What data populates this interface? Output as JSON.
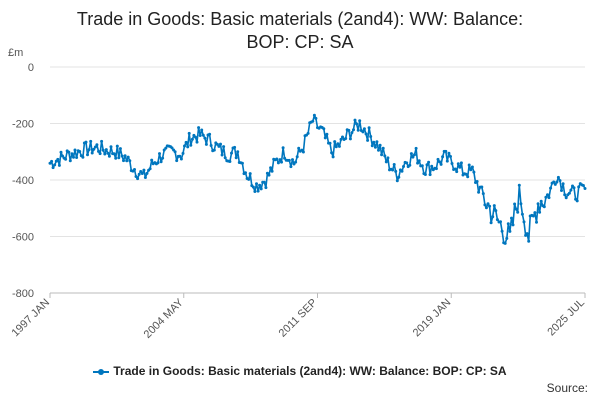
{
  "chart_data": {
    "type": "line",
    "title": "Trade in Goods: Basic materials (2and4): WW: Balance: BOP: CP: SA",
    "title_lines": [
      "Trade in Goods: Basic materials (2and4): WW: Balance:",
      "BOP: CP: SA"
    ],
    "ylabel": "£m",
    "xlabel": "",
    "ylim": [
      -800,
      0
    ],
    "y_ticks": [
      0,
      -200,
      -400,
      -600,
      -800
    ],
    "x_tick_labels": [
      "1997 JAN",
      "2004 MAY",
      "2011 SEP",
      "2019 JAN",
      "2025 JUL"
    ],
    "x_range": [
      "1997 JAN",
      "2025 JUL"
    ],
    "grid": true,
    "legend_position": "bottom",
    "series": [
      {
        "name": "Trade in Goods: Basic materials (2and4): WW: Balance: BOP: CP: SA",
        "color": "#0076be",
        "x": [
          "1997",
          "1997.5",
          "1998",
          "1998.5",
          "1999",
          "1999.5",
          "2000",
          "2000.5",
          "2001",
          "2001.5",
          "2002",
          "2002.5",
          "2003",
          "2003.5",
          "2004",
          "2004.5",
          "2005",
          "2005.5",
          "2006",
          "2006.5",
          "2007",
          "2007.5",
          "2008",
          "2008.5",
          "2009",
          "2009.5",
          "2010",
          "2010.5",
          "2011",
          "2011.5",
          "2012",
          "2012.5",
          "2013",
          "2013.5",
          "2014",
          "2014.5",
          "2015",
          "2015.5",
          "2016",
          "2016.5",
          "2017",
          "2017.5",
          "2018",
          "2018.5",
          "2019",
          "2019.5",
          "2020",
          "2020.5",
          "2021",
          "2021.5",
          "2022",
          "2022.5",
          "2023",
          "2023.5",
          "2024",
          "2024.5",
          "2025",
          "2025.5"
        ],
        "values": [
          -340,
          -325,
          -310,
          -300,
          -290,
          -285,
          -295,
          -300,
          -320,
          -360,
          -390,
          -340,
          -310,
          -300,
          -310,
          -250,
          -240,
          -260,
          -290,
          -310,
          -300,
          -380,
          -420,
          -400,
          -340,
          -300,
          -340,
          -280,
          -190,
          -230,
          -300,
          -270,
          -230,
          -200,
          -240,
          -280,
          -340,
          -380,
          -330,
          -310,
          -360,
          -350,
          -320,
          -340,
          -370,
          -370,
          -450,
          -510,
          -560,
          -610,
          -440,
          -600,
          -480,
          -460,
          -380,
          -440,
          -450,
          -430
        ]
      }
    ],
    "source_label": "Source:"
  }
}
